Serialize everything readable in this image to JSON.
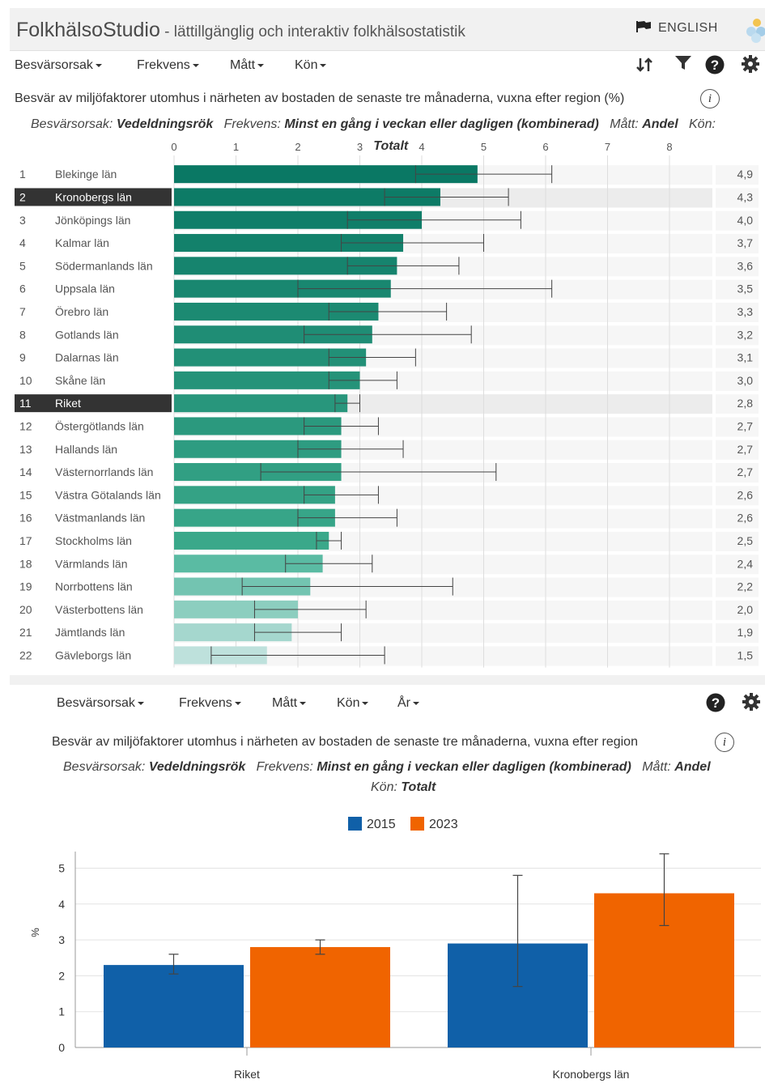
{
  "header": {
    "brand": "FolkhälsoStudio",
    "subtitle": " - lättillgänglig och interaktiv folkhälsostatistik",
    "language": "ENGLISH"
  },
  "toolbar1": {
    "menus": [
      "Besvärsorsak",
      "Frekvens",
      "Mått",
      "Kön"
    ]
  },
  "chart1": {
    "title": "Besvär av miljöfaktorer utomhus i närheten av bostaden de senaste tre månaderna, vuxna efter region (%)",
    "filters": [
      {
        "label": "Besvärsorsak:",
        "value": "Vedeldningsrök"
      },
      {
        "label": "Frekvens:",
        "value": "Minst en gång i veckan eller dagligen (kombinerad)"
      },
      {
        "label": "Mått:",
        "value": "Andel"
      },
      {
        "label": "Kön:",
        "value": ""
      }
    ],
    "axis_label": "Totalt",
    "highlighted_rows": [
      "Kronobergs län",
      "Riket"
    ]
  },
  "toolbar2": {
    "menus": [
      "Besvärsorsak",
      "Frekvens",
      "Mått",
      "Kön",
      "År"
    ]
  },
  "chart2": {
    "title": "Besvär av miljöfaktorer utomhus i närheten av bostaden de senaste tre månaderna, vuxna efter region",
    "filters": [
      {
        "label": "Besvärsorsak:",
        "value": "Vedeldningsrök"
      },
      {
        "label": "Frekvens:",
        "value": "Minst en gång i veckan eller dagligen (kombinerad)"
      },
      {
        "label": "Mått:",
        "value": "Andel"
      }
    ],
    "filters_line2": {
      "label": "Kön:",
      "value": "Totalt"
    }
  },
  "colors": {
    "blue_2015": "#1060a8",
    "orange_2023": "#f06400",
    "highlight_row": "#333333"
  },
  "chart_data": [
    {
      "type": "bar",
      "orientation": "horizontal",
      "title": "Besvär av miljöfaktorer utomhus i närheten av bostaden de senaste tre månaderna, vuxna efter region (%)",
      "xlabel": "Totalt",
      "xlim": [
        0,
        8.5
      ],
      "xticks": [
        0,
        1,
        2,
        3,
        4,
        5,
        6,
        7,
        8
      ],
      "grid": true,
      "ranks": [
        1,
        2,
        3,
        4,
        5,
        6,
        7,
        8,
        9,
        10,
        11,
        12,
        13,
        14,
        15,
        16,
        17,
        18,
        19,
        20,
        21,
        22
      ],
      "categories": [
        "Blekinge län",
        "Kronobergs län",
        "Jönköpings län",
        "Kalmar län",
        "Södermanlands län",
        "Uppsala län",
        "Örebro län",
        "Gotlands län",
        "Dalarnas län",
        "Skåne län",
        "Riket",
        "Östergötlands län",
        "Hallands län",
        "Västernorrlands län",
        "Västra Götalands län",
        "Västmanlands län",
        "Stockholms län",
        "Värmlands län",
        "Norrbottens län",
        "Västerbottens län",
        "Jämtlands län",
        "Gävleborgs län"
      ],
      "values": [
        4.9,
        4.3,
        4.0,
        3.7,
        3.6,
        3.5,
        3.3,
        3.2,
        3.1,
        3.0,
        2.8,
        2.7,
        2.7,
        2.7,
        2.6,
        2.6,
        2.5,
        2.4,
        2.2,
        2.0,
        1.9,
        1.5
      ],
      "value_labels": [
        "4,9",
        "4,3",
        "4,0",
        "3,7",
        "3,6",
        "3,5",
        "3,3",
        "3,2",
        "3,1",
        "3,0",
        "2,8",
        "2,7",
        "2,7",
        "2,7",
        "2,6",
        "2,6",
        "2,5",
        "2,4",
        "2,2",
        "2,0",
        "1,9",
        "1,5"
      ],
      "ci_low": [
        3.9,
        3.4,
        2.8,
        2.7,
        2.8,
        2.0,
        2.5,
        2.1,
        2.5,
        2.5,
        2.6,
        2.1,
        2.0,
        1.4,
        2.1,
        2.0,
        2.3,
        1.8,
        1.1,
        1.3,
        1.3,
        0.6
      ],
      "ci_high": [
        6.1,
        5.4,
        5.6,
        5.0,
        4.6,
        6.1,
        4.4,
        4.8,
        3.9,
        3.6,
        3.0,
        3.3,
        3.7,
        5.2,
        3.3,
        3.6,
        2.7,
        3.2,
        4.5,
        3.1,
        2.7,
        3.4
      ]
    },
    {
      "type": "bar",
      "title": "Besvär av miljöfaktorer utomhus i närheten av bostaden de senaste tre månaderna, vuxna efter region",
      "categories": [
        "Riket",
        "Kronobergs län"
      ],
      "series": [
        {
          "name": "2015",
          "values": [
            2.3,
            2.9
          ],
          "ci_low": [
            2.05,
            1.7
          ],
          "ci_high": [
            2.6,
            4.8
          ]
        },
        {
          "name": "2023",
          "values": [
            2.8,
            4.3
          ],
          "ci_low": [
            2.6,
            3.4
          ],
          "ci_high": [
            3.0,
            5.4
          ]
        }
      ],
      "ylabel": "%",
      "ylim": [
        0,
        5.5
      ],
      "yticks": [
        0,
        1,
        2,
        3,
        4,
        5
      ],
      "grid": true,
      "legend": "top"
    }
  ]
}
